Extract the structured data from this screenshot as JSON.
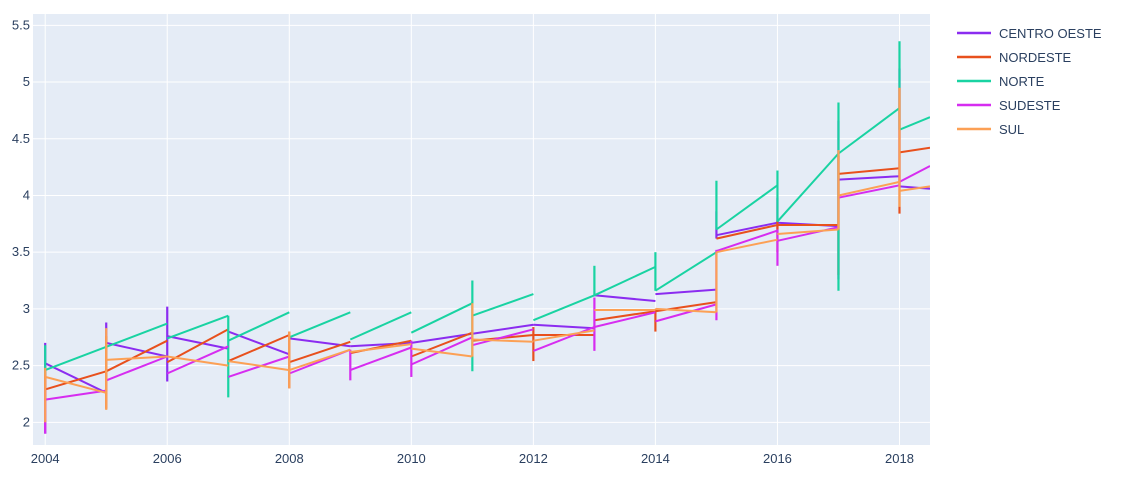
{
  "chart_data": {
    "type": "line",
    "title": "",
    "xlabel": "",
    "ylabel": "",
    "xlim": [
      2003.8,
      2018.5
    ],
    "ylim": [
      1.8,
      5.6
    ],
    "x_ticks": [
      "2004",
      "2006",
      "2008",
      "2010",
      "2012",
      "2014",
      "2016",
      "2018"
    ],
    "y_ticks": [
      "2",
      "2.5",
      "3",
      "3.5",
      "4",
      "4.5",
      "5",
      "5.5"
    ],
    "grid": true,
    "legend_position": "top-right",
    "plot_bg": "#e5ecf6",
    "series": [
      {
        "name": "CENTRO OESTE",
        "color": "#8b2cf0",
        "segments": [
          [
            [
              2004,
              2.52
            ],
            [
              2005,
              2.26
            ]
          ],
          [
            [
              2005,
              2.7
            ],
            [
              2006,
              2.58
            ]
          ],
          [
            [
              2006,
              2.76
            ],
            [
              2007,
              2.65
            ]
          ],
          [
            [
              2007,
              2.8
            ],
            [
              2008,
              2.6
            ]
          ],
          [
            [
              2008,
              2.74
            ],
            [
              2009,
              2.67
            ]
          ],
          [
            [
              2009,
              2.67
            ],
            [
              2010,
              2.7
            ]
          ],
          [
            [
              2010,
              2.7
            ],
            [
              2011,
              2.78
            ]
          ],
          [
            [
              2011,
              2.78
            ],
            [
              2012,
              2.86
            ]
          ],
          [
            [
              2012,
              2.86
            ],
            [
              2013,
              2.83
            ]
          ],
          [
            [
              2013,
              3.12
            ],
            [
              2014,
              3.07
            ]
          ],
          [
            [
              2014,
              3.13
            ],
            [
              2015,
              3.17
            ]
          ],
          [
            [
              2015,
              3.65
            ],
            [
              2016,
              3.76
            ]
          ],
          [
            [
              2016,
              3.76
            ],
            [
              2017,
              3.73
            ]
          ],
          [
            [
              2017,
              4.14
            ],
            [
              2018,
              4.17
            ]
          ],
          [
            [
              2018,
              4.08
            ],
            [
              2018.5,
              4.06
            ]
          ]
        ],
        "spikes": [
          [
            2004,
            1.9,
            2.7
          ],
          [
            2005,
            2.7,
            2.88
          ],
          [
            2006,
            2.36,
            3.02
          ],
          [
            2015,
            3.62,
            3.86
          ],
          [
            2016,
            3.7,
            3.98
          ],
          [
            2017,
            3.26,
            4.66
          ],
          [
            2018,
            4.08,
            5.12
          ]
        ]
      },
      {
        "name": "NORDESTE",
        "color": "#e8501d",
        "segments": [
          [
            [
              2004,
              2.29
            ],
            [
              2005,
              2.45
            ]
          ],
          [
            [
              2005,
              2.45
            ],
            [
              2006,
              2.72
            ]
          ],
          [
            [
              2006,
              2.53
            ],
            [
              2007,
              2.82
            ]
          ],
          [
            [
              2007,
              2.54
            ],
            [
              2008,
              2.77
            ]
          ],
          [
            [
              2008,
              2.53
            ],
            [
              2009,
              2.71
            ]
          ],
          [
            [
              2009,
              2.61
            ],
            [
              2010,
              2.72
            ]
          ],
          [
            [
              2010,
              2.58
            ],
            [
              2011,
              2.79
            ]
          ],
          [
            [
              2011,
              2.72
            ],
            [
              2012,
              2.77
            ]
          ],
          [
            [
              2012,
              2.77
            ],
            [
              2013,
              2.77
            ]
          ],
          [
            [
              2013,
              2.9
            ],
            [
              2014,
              2.98
            ]
          ],
          [
            [
              2014,
              2.98
            ],
            [
              2015,
              3.06
            ]
          ],
          [
            [
              2015,
              3.62
            ],
            [
              2016,
              3.74
            ]
          ],
          [
            [
              2016,
              3.74
            ],
            [
              2017,
              3.74
            ]
          ],
          [
            [
              2017,
              4.19
            ],
            [
              2018,
              4.24
            ]
          ],
          [
            [
              2018,
              4.38
            ],
            [
              2018.5,
              4.42
            ]
          ]
        ],
        "spikes": [
          [
            2004,
            2.2,
            2.45
          ],
          [
            2005,
            2.12,
            2.76
          ],
          [
            2008,
            2.3,
            2.8
          ],
          [
            2012,
            2.54,
            2.84
          ],
          [
            2014,
            2.8,
            3.0
          ],
          [
            2016,
            3.5,
            3.78
          ],
          [
            2017,
            3.3,
            4.35
          ],
          [
            2018,
            3.84,
            4.95
          ]
        ]
      },
      {
        "name": "NORTE",
        "color": "#19d3a2",
        "segments": [
          [
            [
              2004,
              2.46
            ],
            [
              2006,
              2.87
            ]
          ],
          [
            [
              2006,
              2.74
            ],
            [
              2007,
              2.94
            ]
          ],
          [
            [
              2007,
              2.72
            ],
            [
              2008,
              2.97
            ]
          ],
          [
            [
              2008,
              2.75
            ],
            [
              2009,
              2.97
            ]
          ],
          [
            [
              2009,
              2.73
            ],
            [
              2010,
              2.97
            ]
          ],
          [
            [
              2010,
              2.79
            ],
            [
              2011,
              3.05
            ]
          ],
          [
            [
              2011,
              2.94
            ],
            [
              2012,
              3.13
            ]
          ],
          [
            [
              2012,
              2.9
            ],
            [
              2013,
              3.12
            ]
          ],
          [
            [
              2013,
              3.12
            ],
            [
              2014,
              3.37
            ]
          ],
          [
            [
              2014,
              3.16
            ],
            [
              2015,
              3.5
            ]
          ],
          [
            [
              2015,
              3.7
            ],
            [
              2016,
              4.09
            ]
          ],
          [
            [
              2016,
              3.77
            ],
            [
              2017,
              4.37
            ]
          ],
          [
            [
              2017,
              4.37
            ],
            [
              2018,
              4.77
            ]
          ],
          [
            [
              2018,
              4.58
            ],
            [
              2018.5,
              4.69
            ]
          ]
        ],
        "spikes": [
          [
            2004,
            2.42,
            2.68
          ],
          [
            2007,
            2.22,
            2.94
          ],
          [
            2011,
            2.45,
            3.25
          ],
          [
            2013,
            3.12,
            3.38
          ],
          [
            2014,
            3.16,
            3.5
          ],
          [
            2015,
            3.7,
            4.13
          ],
          [
            2016,
            3.77,
            4.22
          ],
          [
            2017,
            3.16,
            4.82
          ],
          [
            2018,
            4.58,
            5.36
          ]
        ]
      },
      {
        "name": "SUDESTE",
        "color": "#d62df0",
        "segments": [
          [
            [
              2004,
              2.2
            ],
            [
              2005,
              2.28
            ]
          ],
          [
            [
              2005,
              2.37
            ],
            [
              2006,
              2.58
            ]
          ],
          [
            [
              2006,
              2.43
            ],
            [
              2007,
              2.67
            ]
          ],
          [
            [
              2007,
              2.4
            ],
            [
              2008,
              2.58
            ]
          ],
          [
            [
              2008,
              2.43
            ],
            [
              2009,
              2.64
            ]
          ],
          [
            [
              2009,
              2.46
            ],
            [
              2010,
              2.66
            ]
          ],
          [
            [
              2010,
              2.51
            ],
            [
              2011,
              2.75
            ]
          ],
          [
            [
              2011,
              2.68
            ],
            [
              2012,
              2.82
            ]
          ],
          [
            [
              2012,
              2.63
            ],
            [
              2013,
              2.84
            ]
          ],
          [
            [
              2013,
              2.84
            ],
            [
              2014,
              2.97
            ]
          ],
          [
            [
              2014,
              2.89
            ],
            [
              2015,
              3.04
            ]
          ],
          [
            [
              2015,
              3.51
            ],
            [
              2016,
              3.69
            ]
          ],
          [
            [
              2016,
              3.6
            ],
            [
              2017,
              3.72
            ]
          ],
          [
            [
              2017,
              3.98
            ],
            [
              2018,
              4.09
            ]
          ],
          [
            [
              2018,
              4.12
            ],
            [
              2018.5,
              4.26
            ]
          ]
        ],
        "spikes": [
          [
            2004,
            1.9,
            2.3
          ],
          [
            2009,
            2.37,
            2.64
          ],
          [
            2010,
            2.4,
            2.72
          ],
          [
            2013,
            2.63,
            3.1
          ],
          [
            2015,
            2.9,
            3.52
          ],
          [
            2016,
            3.38,
            3.7
          ]
        ]
      },
      {
        "name": "SUL",
        "color": "#fca055",
        "segments": [
          [
            [
              2004,
              2.4
            ],
            [
              2005,
              2.26
            ]
          ],
          [
            [
              2005,
              2.55
            ],
            [
              2006,
              2.58
            ]
          ],
          [
            [
              2006,
              2.58
            ],
            [
              2007,
              2.5
            ]
          ],
          [
            [
              2007,
              2.54
            ],
            [
              2008,
              2.46
            ]
          ],
          [
            [
              2008,
              2.46
            ],
            [
              2009,
              2.64
            ]
          ],
          [
            [
              2009,
              2.62
            ],
            [
              2010,
              2.69
            ]
          ],
          [
            [
              2010,
              2.65
            ],
            [
              2011,
              2.58
            ]
          ],
          [
            [
              2011,
              2.73
            ],
            [
              2012,
              2.71
            ]
          ],
          [
            [
              2012,
              2.72
            ],
            [
              2013,
              2.81
            ]
          ],
          [
            [
              2013,
              2.99
            ],
            [
              2014,
              2.99
            ]
          ],
          [
            [
              2014,
              3.0
            ],
            [
              2015,
              2.97
            ]
          ],
          [
            [
              2015,
              3.5
            ],
            [
              2016,
              3.61
            ]
          ],
          [
            [
              2016,
              3.66
            ],
            [
              2017,
              3.7
            ]
          ],
          [
            [
              2017,
              4.0
            ],
            [
              2018,
              4.12
            ]
          ],
          [
            [
              2018,
              4.04
            ],
            [
              2018.5,
              4.08
            ]
          ]
        ],
        "spikes": [
          [
            2004,
            2.0,
            2.48
          ],
          [
            2005,
            2.11,
            2.83
          ],
          [
            2008,
            2.3,
            2.8
          ],
          [
            2011,
            2.58,
            3.05
          ],
          [
            2015,
            2.97,
            3.5
          ],
          [
            2017,
            3.7,
            4.4
          ],
          [
            2018,
            3.9,
            4.95
          ]
        ]
      }
    ]
  }
}
